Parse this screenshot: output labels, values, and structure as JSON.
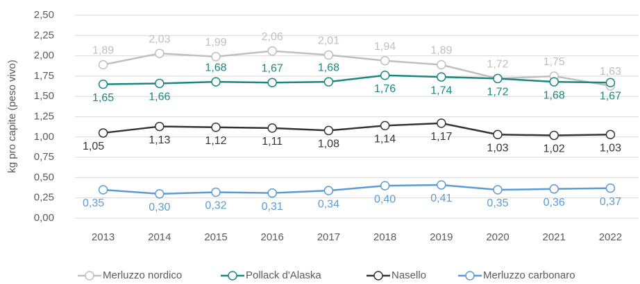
{
  "chart_data": {
    "type": "line",
    "y_label": "kg pro capite (peso vivo)",
    "categories": [
      "2013",
      "2014",
      "2015",
      "2016",
      "2017",
      "2018",
      "2019",
      "2020",
      "2021",
      "2022"
    ],
    "series": [
      {
        "name": "Merluzzo nordico",
        "color": "#bfbfbf",
        "values": [
          1.89,
          2.03,
          1.99,
          2.06,
          2.01,
          1.94,
          1.89,
          1.72,
          1.75,
          1.63
        ],
        "value_labels": [
          "1,89",
          "2,03",
          "1,99",
          "2,06",
          "2,01",
          "1,94",
          "1,89",
          "1,72",
          "1,75",
          "1,63"
        ]
      },
      {
        "name": "Pollack d'Alaska",
        "color": "#18877d",
        "values": [
          1.65,
          1.66,
          1.68,
          1.67,
          1.68,
          1.76,
          1.74,
          1.72,
          1.68,
          1.67
        ],
        "value_labels": [
          "1,65",
          "1,66",
          "1,68",
          "1,67",
          "1,68",
          "1,76",
          "1,74",
          "1,72",
          "1,68",
          "1,67"
        ]
      },
      {
        "name": "Nasello",
        "color": "#333333",
        "values": [
          1.05,
          1.13,
          1.12,
          1.11,
          1.08,
          1.14,
          1.17,
          1.03,
          1.02,
          1.03
        ],
        "value_labels": [
          "1,05",
          "1,13",
          "1,12",
          "1,11",
          "1,08",
          "1,14",
          "1,17",
          "1,03",
          "1,02",
          "1,03"
        ]
      },
      {
        "name": "Merluzzo carbonaro",
        "color": "#5b9bd5",
        "values": [
          0.35,
          0.3,
          0.32,
          0.31,
          0.34,
          0.4,
          0.41,
          0.35,
          0.36,
          0.37
        ],
        "value_labels": [
          "0,35",
          "0,30",
          "0,32",
          "0,31",
          "0,34",
          "0,40",
          "0,41",
          "0,35",
          "0,36",
          "0,37"
        ]
      }
    ],
    "ylim": [
      0,
      2.5
    ],
    "yticks": [
      {
        "value": 0,
        "label": "0,00"
      },
      {
        "value": 0.25,
        "label": "0,25"
      },
      {
        "value": 0.5,
        "label": "0,50"
      },
      {
        "value": 0.75,
        "label": "0,75"
      },
      {
        "value": 1,
        "label": "1,00"
      },
      {
        "value": 1.25,
        "label": "1,25"
      },
      {
        "value": 1.5,
        "label": "1,50"
      },
      {
        "value": 1.75,
        "label": "1,75"
      },
      {
        "value": 2,
        "label": "2,00"
      },
      {
        "value": 2.25,
        "label": "2,25"
      },
      {
        "value": 2.5,
        "label": "2,50"
      }
    ],
    "grid": true,
    "legend": "bottom"
  }
}
